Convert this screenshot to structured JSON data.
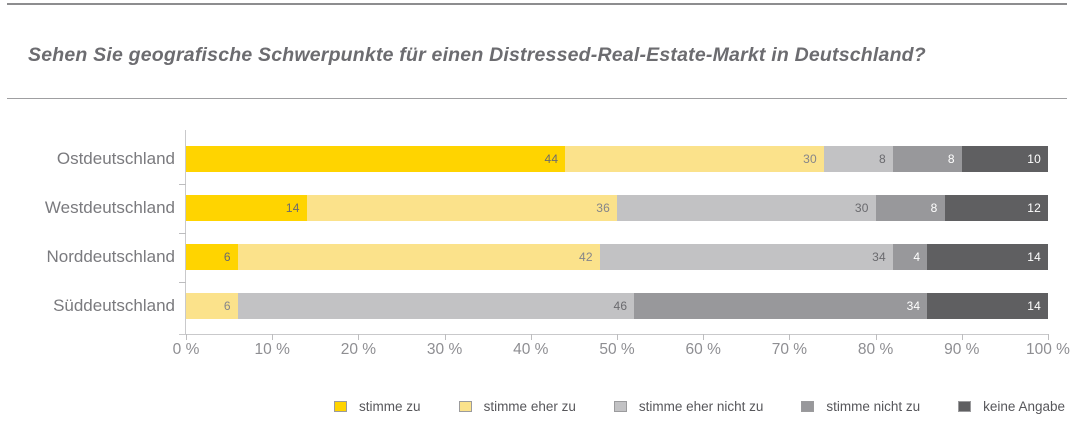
{
  "header": {
    "title": "Sehen Sie geografische Schwerpunkte für einen Distressed-Real-Estate-Markt in Deutschland?"
  },
  "chart_data": {
    "type": "bar",
    "stacked": true,
    "orientation": "horizontal",
    "title": "Sehen Sie geografische Schwerpunkte für einen Distressed-Real-Estate-Markt in Deutschland?",
    "categories": [
      "Ostdeutschland",
      "Westdeutschland",
      "Norddeutschland",
      "Süddeutschland"
    ],
    "series": [
      {
        "name": "stimme zu",
        "color": "#FFD400",
        "label_color": "#6b6b6e",
        "values": [
          44,
          14,
          6,
          0
        ]
      },
      {
        "name": "stimme eher zu",
        "color": "#FBE28B",
        "label_color": "#85858a",
        "values": [
          30,
          36,
          42,
          6
        ]
      },
      {
        "name": "stimme eher nicht zu",
        "color": "#C2C2C4",
        "label_color": "#6a6a6e",
        "values": [
          8,
          30,
          34,
          46
        ]
      },
      {
        "name": "stimme nicht zu",
        "color": "#98989B",
        "label_color": "#ffffff",
        "values": [
          8,
          8,
          4,
          34
        ]
      },
      {
        "name": "keine Angabe",
        "color": "#5F5F61",
        "label_color": "#ffffff",
        "values": [
          10,
          12,
          14,
          14
        ]
      }
    ],
    "xlabel": "",
    "ylabel": "",
    "x_axis": {
      "min": 0,
      "max": 100,
      "ticks": [
        "0 %",
        "10 %",
        "20 %",
        "30 %",
        "40 %",
        "50 %",
        "60 %",
        "70 %",
        "80 %",
        "90 %",
        "100 %"
      ]
    },
    "grid": false,
    "legend_position": "bottom"
  }
}
